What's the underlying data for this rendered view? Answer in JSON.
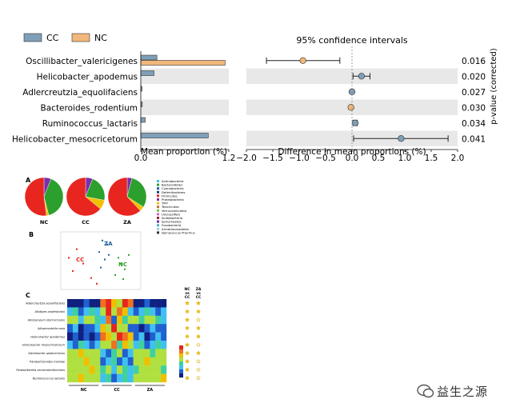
{
  "chart_data": [
    {
      "type": "bar",
      "id": "extended-error-bar",
      "legend": [
        {
          "name": "CC",
          "color": "#7f9fb8"
        },
        {
          "name": "NC",
          "color": "#f2b77a"
        }
      ],
      "ci_title": "95% confidence intervals",
      "categories": [
        "Oscillibacter_valericigenes",
        "Helicobacter_apodemus",
        "Adlercreutzia_equolifaciens",
        "Bacteroides_rodentium",
        "Ruminococcus_lactaris",
        "Helicobacter_mesocricetorum"
      ],
      "series": [
        {
          "name": "CC",
          "values": [
            0.22,
            0.18,
            0.01,
            0.02,
            0.06,
            0.92
          ]
        },
        {
          "name": "NC",
          "values": [
            1.15,
            0.0,
            0.0,
            0.0,
            0.0,
            0.0
          ]
        }
      ],
      "xlabel": "Mean proportion (%)",
      "xlim": [
        0,
        1.2
      ],
      "xticks": [
        "0.0",
        "1.2"
      ],
      "diff": {
        "values": [
          -0.93,
          0.18,
          0.0,
          -0.02,
          0.06,
          0.93
        ],
        "ci_low": [
          -1.62,
          0.02,
          null,
          null,
          0.02,
          0.03
        ],
        "ci_high": [
          -0.23,
          0.34,
          null,
          null,
          0.1,
          1.82
        ],
        "colors": [
          "#f2b77a",
          "#7f9fb8",
          "#7f9fb8",
          "#f2b77a",
          "#7f9fb8",
          "#7f9fb8"
        ],
        "xlabel": "Difference in mean proportions (%)",
        "xlim": [
          -2.0,
          2.0
        ],
        "xticks": [
          "−2.0",
          "−1.5",
          "−1.0",
          "−0.5",
          "0.0",
          "0.5",
          "1.0",
          "1.5",
          "2.0"
        ]
      },
      "pvalues": [
        "0.016",
        "0.020",
        "0.027",
        "0.030",
        "0.034",
        "0.041"
      ],
      "pvalue_label": "p-value (corrected)"
    },
    {
      "type": "pie",
      "id": "panel-A",
      "panel_label": "A",
      "pies": [
        {
          "name": "NC",
          "slices": [
            0.06,
            0.4,
            0.02,
            0.52
          ]
        },
        {
          "name": "CC",
          "slices": [
            0.06,
            0.22,
            0.08,
            0.64
          ]
        },
        {
          "name": "ZA",
          "slices": [
            0.04,
            0.3,
            0.04,
            0.62
          ]
        }
      ],
      "slice_colors": [
        "#7b2fa8",
        "#2ca02c",
        "#f0c000",
        "#e8251f"
      ],
      "legend": [
        {
          "name": "Actinobacteria",
          "color": "#40c0e0"
        },
        {
          "name": "Bacteroidetes",
          "color": "#2ca02c"
        },
        {
          "name": "Cyanobacteria",
          "color": "#1f5fa0"
        },
        {
          "name": "Deferribacteres",
          "color": "#1f3f80"
        },
        {
          "name": "Firmicutes",
          "color": "#e8251f"
        },
        {
          "name": "Proteobacteria",
          "color": "#7b2fa8"
        },
        {
          "name": "TM7",
          "color": "#f0c000"
        },
        {
          "name": "Tenericutes",
          "color": "#c07030"
        },
        {
          "name": "Verrucomicrobia",
          "color": "#80c040"
        },
        {
          "name": "Unclassified",
          "color": "#d060c0"
        },
        {
          "name": "Acidobacteria",
          "color": "#a02040"
        },
        {
          "name": "Spirochaetes",
          "color": "#6030a0"
        },
        {
          "name": "Fusobacteria",
          "color": "#50b0c0"
        },
        {
          "name": "Armatimonadetes",
          "color": "#90d0e0"
        },
        {
          "name": "Deinococcus-Thermus",
          "color": "#303030"
        }
      ]
    },
    {
      "type": "scatter",
      "id": "panel-B",
      "panel_label": "B",
      "groups": [
        {
          "name": "CC",
          "color": "#e8251f",
          "points": [
            [
              -0.3,
              0.2
            ],
            [
              -0.22,
              -0.05
            ],
            [
              -0.35,
              -0.18
            ],
            [
              -0.12,
              -0.3
            ],
            [
              -0.4,
              0.05
            ],
            [
              -0.05,
              -0.4
            ]
          ]
        },
        {
          "name": "ZA",
          "color": "#1f5fa0",
          "points": [
            [
              0.02,
              0.35
            ],
            [
              0.08,
              0.28
            ],
            [
              -0.02,
              0.15
            ],
            [
              0.1,
              0.1
            ],
            [
              0.05,
              0.02
            ],
            [
              0.0,
              -0.12
            ]
          ]
        },
        {
          "name": "NC",
          "color": "#2ca02c",
          "points": [
            [
              0.25,
              -0.05
            ],
            [
              0.3,
              -0.15
            ],
            [
              0.22,
              0.05
            ],
            [
              0.35,
              0.1
            ],
            [
              0.18,
              -0.25
            ],
            [
              0.28,
              -0.32
            ]
          ]
        }
      ],
      "xlim": [
        -0.5,
        0.5
      ],
      "ylim": [
        -0.5,
        0.5
      ]
    },
    {
      "type": "heatmap",
      "id": "panel-C",
      "panel_label": "C",
      "rows": [
        "Adlercreutzia equolifaciens",
        "Alistipes onderdonkii",
        "Allobaculum stercoricanis",
        "Alloprevotella rava",
        "Helicobacter apodemus",
        "Helicobacter mesocricetorum",
        "Odoribacter splanchnicus",
        "Parabacteroides merdae",
        "Parasutterella excrementihominis",
        "Ruminococcus lactaris"
      ],
      "groups": [
        "NC",
        "CC",
        "ZA"
      ],
      "cols_per_group": 6,
      "values": [
        [
          0.1,
          0.0,
          0.1,
          0.2,
          0.1,
          0.0,
          0.8,
          0.9,
          0.7,
          0.6,
          0.9,
          0.8,
          0.1,
          0.0,
          0.2,
          0.1,
          0.1,
          0.0
        ],
        [
          0.3,
          0.4,
          0.2,
          0.3,
          0.4,
          0.3,
          0.6,
          0.9,
          0.5,
          0.8,
          0.7,
          0.3,
          0.2,
          0.3,
          0.4,
          0.3,
          0.2,
          0.3
        ],
        [
          0.5,
          0.6,
          0.3,
          0.5,
          0.6,
          0.4,
          0.3,
          0.8,
          0.2,
          0.7,
          0.4,
          0.5,
          0.5,
          0.4,
          0.6,
          0.5,
          0.4,
          0.3
        ],
        [
          0.2,
          0.3,
          0.1,
          0.2,
          0.2,
          0.3,
          0.7,
          0.6,
          0.9,
          0.5,
          0.6,
          0.2,
          0.2,
          0.1,
          0.2,
          0.3,
          0.2,
          0.2
        ],
        [
          0.1,
          0.2,
          0.1,
          0.2,
          0.1,
          0.2,
          0.8,
          0.7,
          0.6,
          0.9,
          0.8,
          0.7,
          0.2,
          0.3,
          0.1,
          0.2,
          0.3,
          0.2
        ],
        [
          0.3,
          0.2,
          0.4,
          0.3,
          0.2,
          0.3,
          0.6,
          0.5,
          0.8,
          0.4,
          0.7,
          0.6,
          0.3,
          0.4,
          0.2,
          0.3,
          0.4,
          0.3
        ],
        [
          0.5,
          0.6,
          0.7,
          0.5,
          0.6,
          0.5,
          0.3,
          0.2,
          0.4,
          0.5,
          0.2,
          0.3,
          0.5,
          0.6,
          0.5,
          0.4,
          0.6,
          0.5
        ],
        [
          0.6,
          0.5,
          0.6,
          0.7,
          0.5,
          0.6,
          0.2,
          0.3,
          0.4,
          0.2,
          0.3,
          0.2,
          0.6,
          0.5,
          0.7,
          0.6,
          0.5,
          0.6
        ],
        [
          0.5,
          0.6,
          0.5,
          0.6,
          0.7,
          0.5,
          0.4,
          0.6,
          0.3,
          0.5,
          0.4,
          0.3,
          0.4,
          0.5,
          0.6,
          0.5,
          0.6,
          0.4
        ],
        [
          0.6,
          0.5,
          0.7,
          0.6,
          0.5,
          0.6,
          0.3,
          0.4,
          0.2,
          0.3,
          0.4,
          0.3,
          0.5,
          0.6,
          0.5,
          0.6,
          0.5,
          0.7
        ]
      ],
      "comparisons": [
        {
          "label_top": "NC",
          "label_mid": "vs",
          "label_bot": "CC"
        },
        {
          "label_top": "ZA",
          "label_mid": "vs",
          "label_bot": "CC"
        }
      ],
      "stars": [
        [
          "filled",
          "filled"
        ],
        [
          "filled",
          "filled"
        ],
        [
          "filled",
          "open"
        ],
        [
          "filled",
          "filled"
        ],
        [
          "filled",
          "filled"
        ],
        [
          "filled",
          "open"
        ],
        [
          "filled",
          "filled"
        ],
        [
          "filled",
          "open"
        ],
        [
          "filled",
          "open"
        ],
        [
          "filled",
          "open"
        ]
      ],
      "colorbar": [
        "#e8251f",
        "#f07020",
        "#f0c000",
        "#b0e040",
        "#40d0a0",
        "#40c0f0",
        "#2060d0",
        "#102080"
      ]
    }
  ],
  "watermark": {
    "text": "益生之源"
  }
}
